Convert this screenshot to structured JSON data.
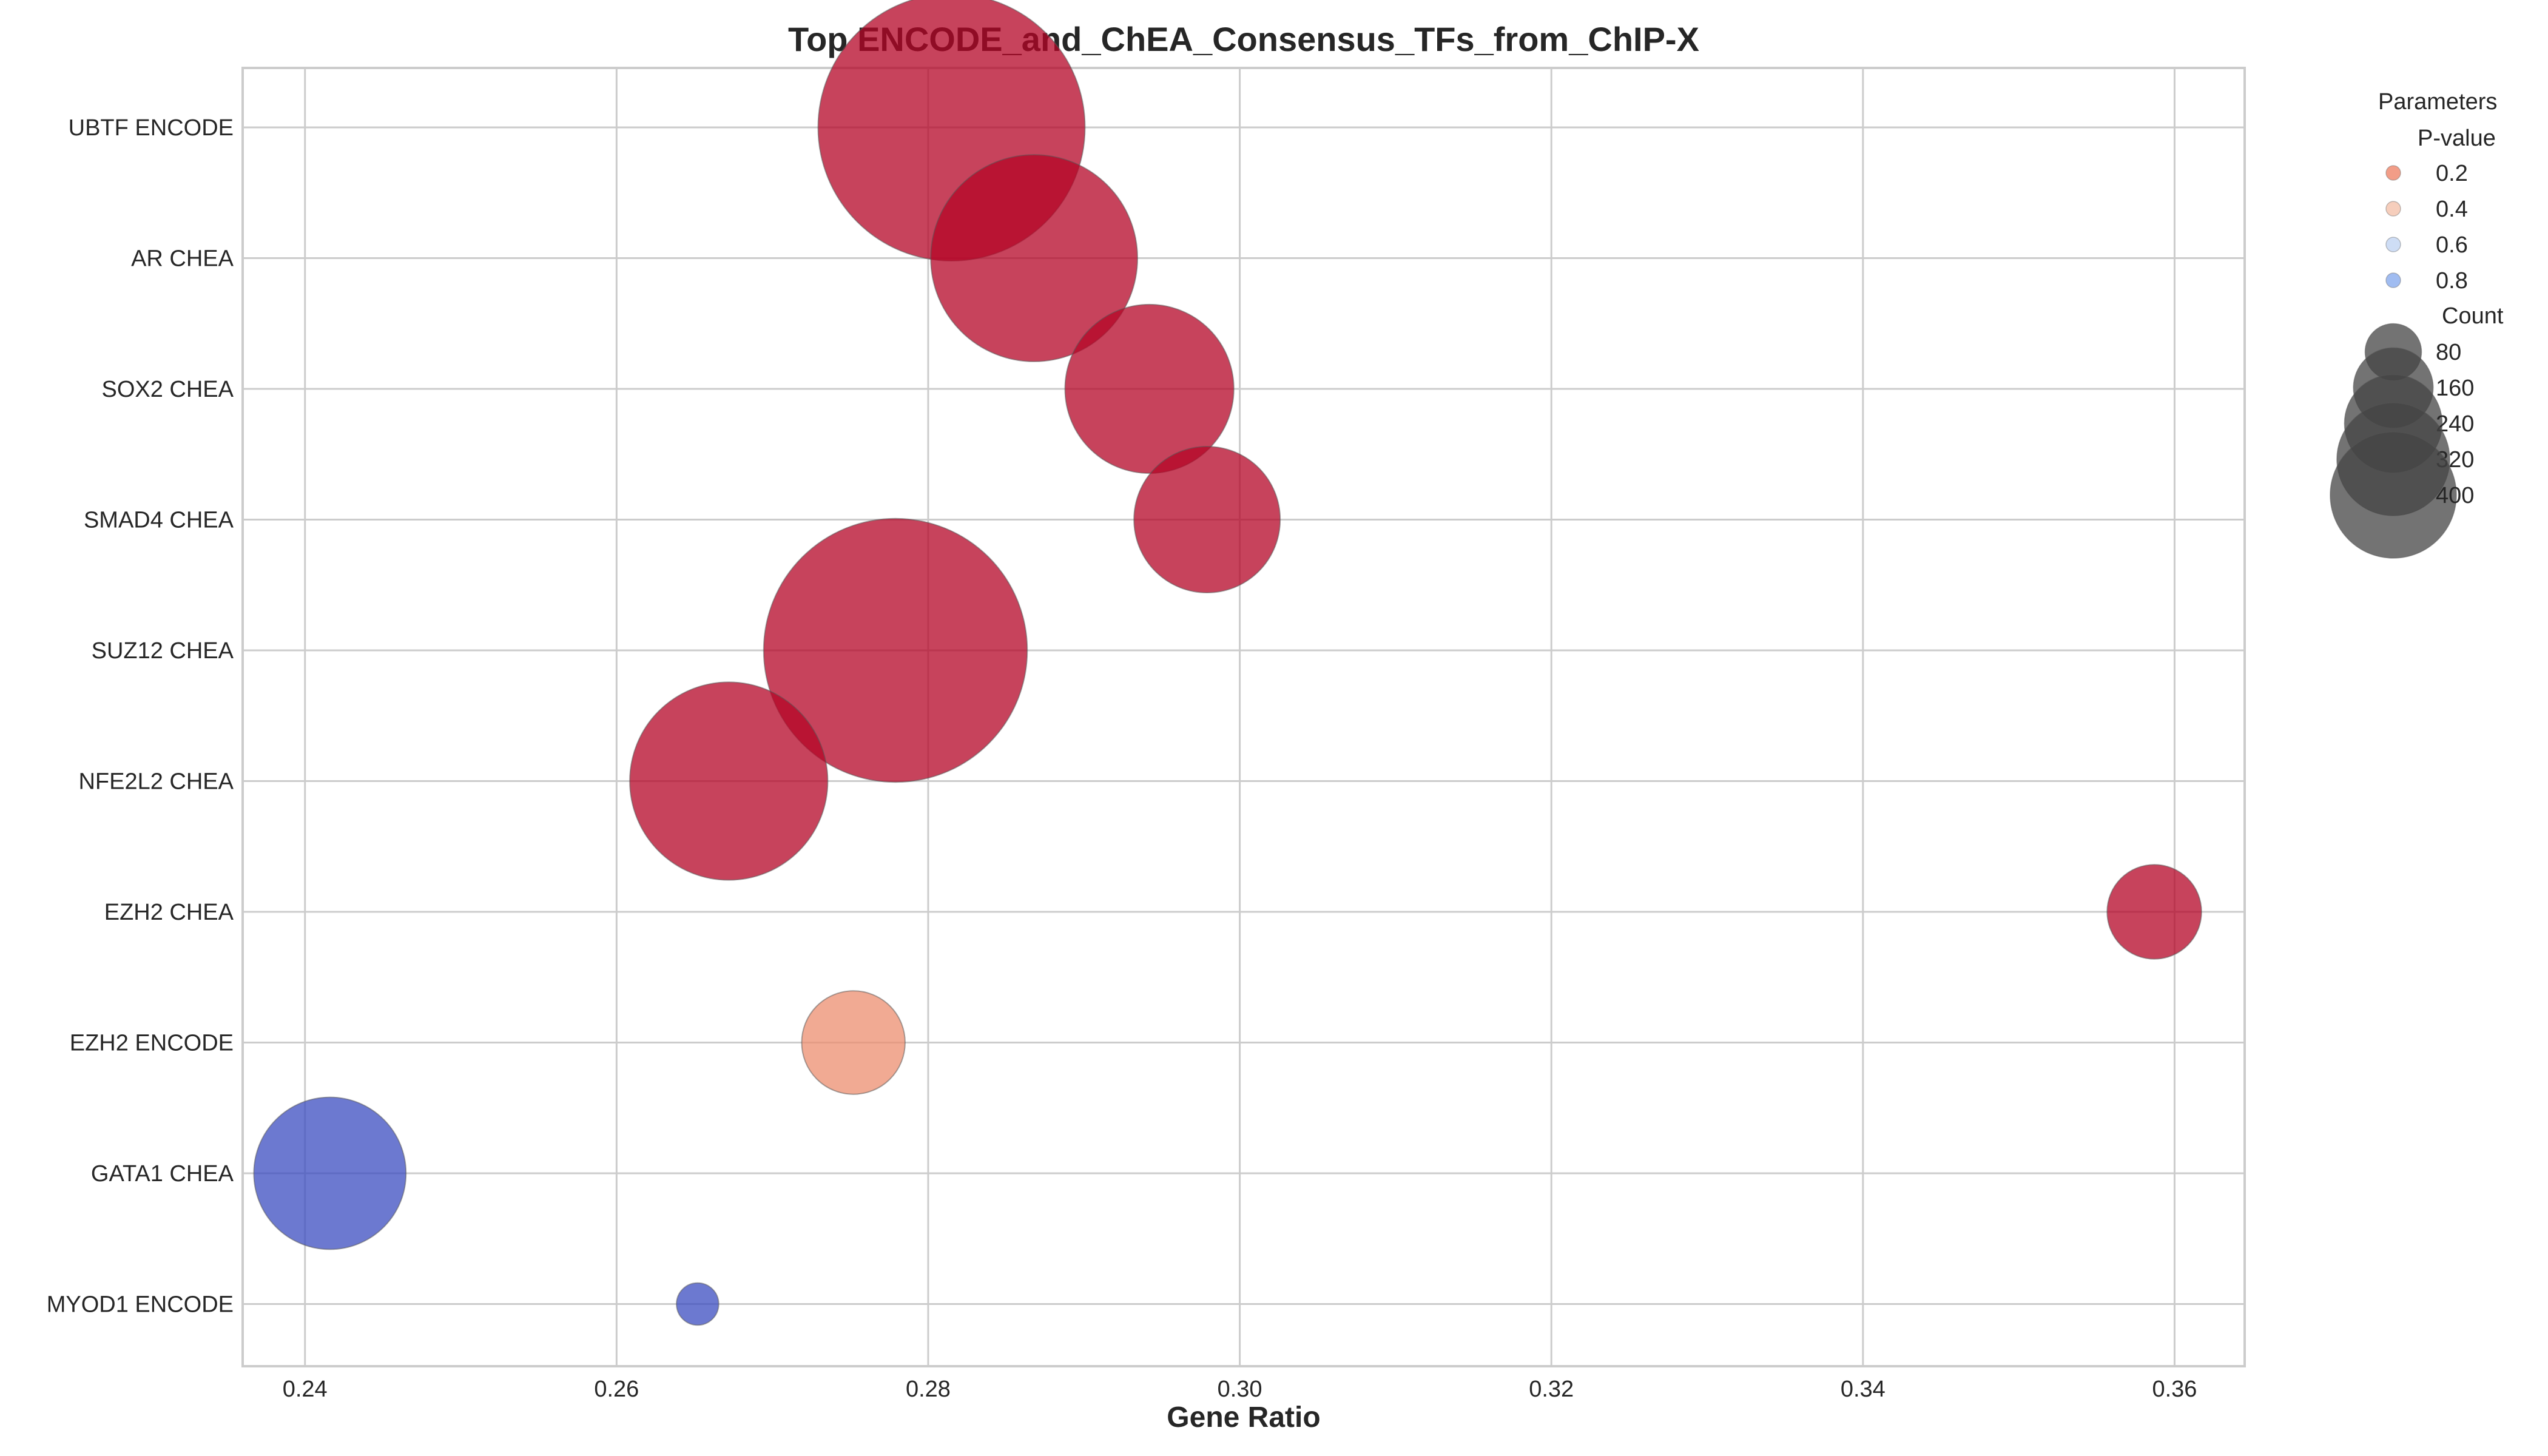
{
  "chart_data": {
    "type": "scatter",
    "title": "Top ENCODE_and_ChEA_Consensus_TFs_from_ChIP-X",
    "xlabel": "Gene Ratio",
    "ylabel": "",
    "xlim": [
      0.236,
      0.3645
    ],
    "xticks": [
      "0.24",
      "0.26",
      "0.28",
      "0.30",
      "0.32",
      "0.34",
      "0.36"
    ],
    "grid": true,
    "legend_position": "right-outside",
    "categories": [
      "UBTF ENCODE",
      "AR CHEA",
      "SOX2 CHEA",
      "SMAD4 CHEA",
      "SUZ12 CHEA",
      "NFE2L2 CHEA",
      "EZH2 CHEA",
      "EZH2 ENCODE",
      "GATA1 CHEA",
      "MYOD1 ENCODE"
    ],
    "points": [
      {
        "term": "UBTF ENCODE",
        "gene_ratio": 0.2815,
        "count": 400,
        "pvalue": 0.0,
        "color": "#b40426"
      },
      {
        "term": "AR CHEA",
        "gene_ratio": 0.2868,
        "count": 240,
        "pvalue": 0.0,
        "color": "#b40426"
      },
      {
        "term": "SOX2 CHEA",
        "gene_ratio": 0.2942,
        "count": 160,
        "pvalue": 0.0,
        "color": "#b40426"
      },
      {
        "term": "SMAD4 CHEA",
        "gene_ratio": 0.2979,
        "count": 120,
        "pvalue": 0.0,
        "color": "#b40426"
      },
      {
        "term": "SUZ12 CHEA",
        "gene_ratio": 0.2779,
        "count": 390,
        "pvalue": 0.0,
        "color": "#b40426"
      },
      {
        "term": "NFE2L2 CHEA",
        "gene_ratio": 0.2672,
        "count": 220,
        "pvalue": 0.0,
        "color": "#b40426"
      },
      {
        "term": "EZH2 CHEA",
        "gene_ratio": 0.3587,
        "count": 50,
        "pvalue": 0.0,
        "color": "#b40426"
      },
      {
        "term": "EZH2 ENCODE",
        "gene_ratio": 0.2752,
        "count": 60,
        "pvalue": 0.2,
        "color": "#ec8d6f"
      },
      {
        "term": "GATA1 CHEA",
        "gene_ratio": 0.2416,
        "count": 130,
        "pvalue": 1.0,
        "color": "#3b4cc0"
      },
      {
        "term": "MYOD1 ENCODE",
        "gene_ratio": 0.2652,
        "count": 10,
        "pvalue": 1.0,
        "color": "#3b4cc0"
      }
    ],
    "legend": {
      "title": "Parameters",
      "pvalue_title": "P-value",
      "pvalue_items": [
        {
          "label": "0.2",
          "color": "#f08c72"
        },
        {
          "label": "0.4",
          "color": "#f4c6b0"
        },
        {
          "label": "0.6",
          "color": "#c6d7f3"
        },
        {
          "label": "0.8",
          "color": "#8fb0ee"
        }
      ],
      "count_title": "Count",
      "count_items": [
        {
          "label": "80",
          "value": 80
        },
        {
          "label": "160",
          "value": 160
        },
        {
          "label": "240",
          "value": 240
        },
        {
          "label": "320",
          "value": 320
        },
        {
          "label": "400",
          "value": 400
        }
      ]
    }
  }
}
